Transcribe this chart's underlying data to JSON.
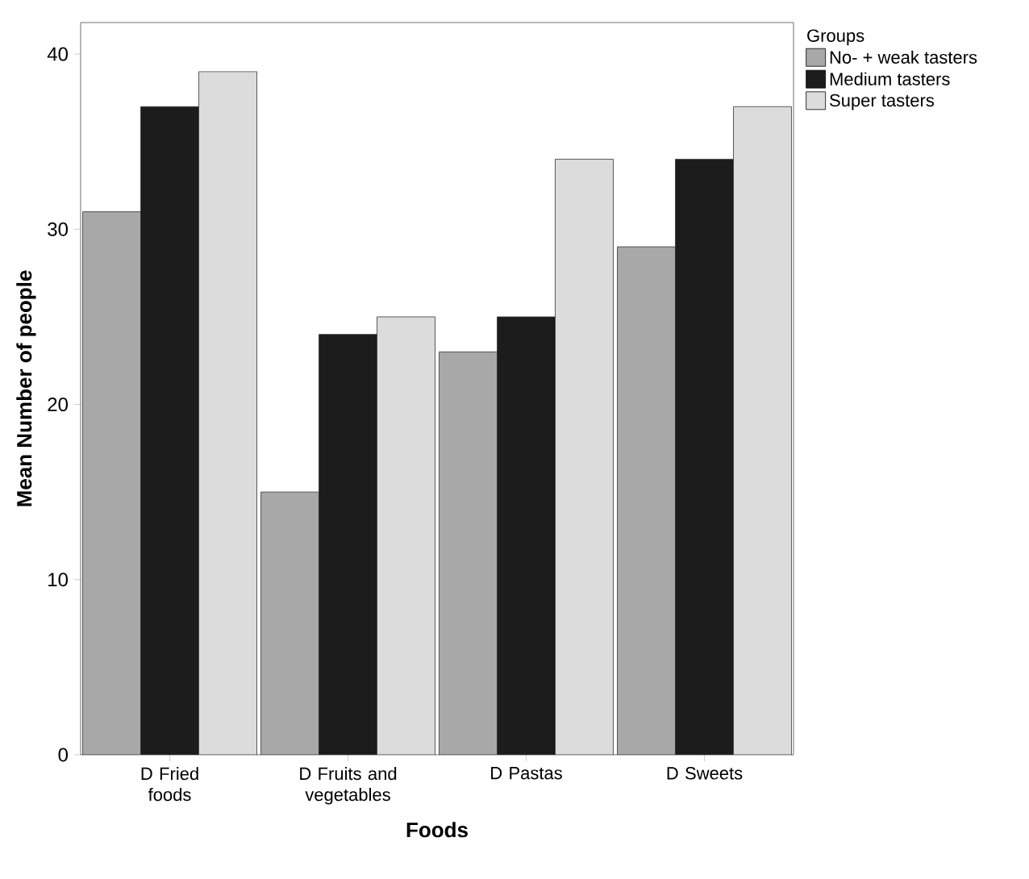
{
  "chart_data": {
    "type": "bar",
    "xlabel": "Foods",
    "ylabel": "Mean Number of people",
    "legend_title": "Groups",
    "legend": "top right",
    "categories": [
      "D Fried foods",
      "D Fruits and vegetables",
      "D Pastas",
      "D Sweets"
    ],
    "series": [
      {
        "name": "No- + weak tasters",
        "color": "#a8a8a8",
        "values": [
          31,
          15,
          23,
          29
        ]
      },
      {
        "name": "Medium tasters",
        "color": "#1c1c1c",
        "values": [
          37,
          24,
          25,
          34
        ]
      },
      {
        "name": "Super tasters",
        "color": "#dcdcdc",
        "values": [
          39,
          25,
          34,
          37
        ]
      }
    ],
    "ylim": [
      0,
      41.8
    ],
    "yticks": [
      0,
      10,
      20,
      30,
      40
    ],
    "grid": false
  }
}
